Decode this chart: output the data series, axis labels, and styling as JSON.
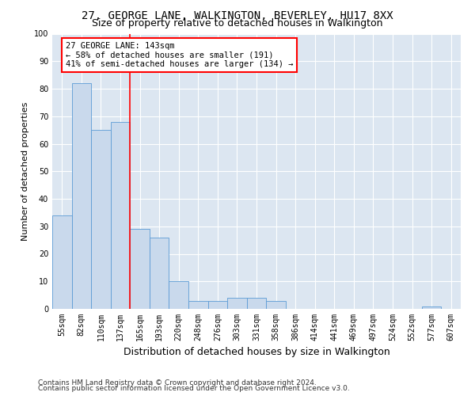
{
  "title1": "27, GEORGE LANE, WALKINGTON, BEVERLEY, HU17 8XX",
  "title2": "Size of property relative to detached houses in Walkington",
  "xlabel": "Distribution of detached houses by size in Walkington",
  "ylabel": "Number of detached properties",
  "bar_labels": [
    "55sqm",
    "82sqm",
    "110sqm",
    "137sqm",
    "165sqm",
    "193sqm",
    "220sqm",
    "248sqm",
    "276sqm",
    "303sqm",
    "331sqm",
    "358sqm",
    "386sqm",
    "414sqm",
    "441sqm",
    "469sqm",
    "497sqm",
    "524sqm",
    "552sqm",
    "577sqm",
    "607sqm"
  ],
  "bar_values": [
    34,
    82,
    65,
    68,
    29,
    26,
    10,
    3,
    3,
    4,
    4,
    3,
    0,
    0,
    0,
    0,
    0,
    0,
    0,
    1,
    0
  ],
  "bar_color": "#c9d9ec",
  "bar_edge_color": "#5b9bd5",
  "ylim": [
    0,
    100
  ],
  "yticks": [
    0,
    10,
    20,
    30,
    40,
    50,
    60,
    70,
    80,
    90,
    100
  ],
  "red_line_x": 3.5,
  "annotation_box_text": "27 GEORGE LANE: 143sqm\n← 58% of detached houses are smaller (191)\n41% of semi-detached houses are larger (134) →",
  "annotation_box_color": "white",
  "annotation_box_edge_color": "red",
  "footer1": "Contains HM Land Registry data © Crown copyright and database right 2024.",
  "footer2": "Contains public sector information licensed under the Open Government Licence v3.0.",
  "background_color": "#dce6f1",
  "grid_color": "white",
  "title1_fontsize": 10,
  "title2_fontsize": 9,
  "xlabel_fontsize": 9,
  "ylabel_fontsize": 8,
  "tick_fontsize": 7,
  "footer_fontsize": 6.5,
  "annot_fontsize": 7.5
}
